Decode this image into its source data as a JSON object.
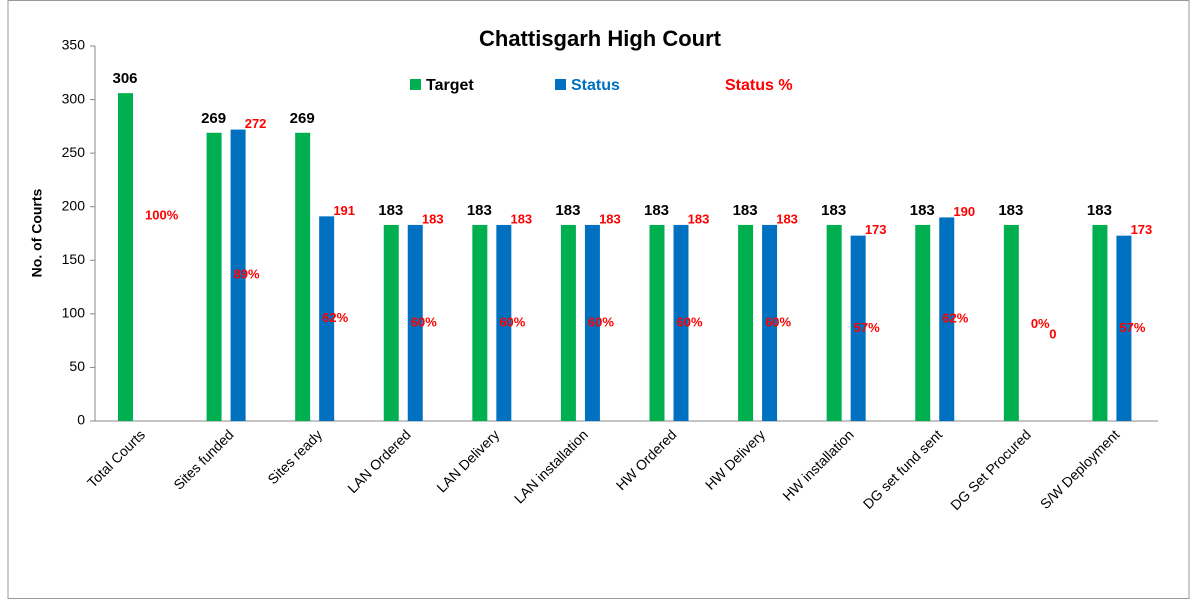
{
  "chart_data": {
    "type": "bar",
    "title": "Chattisgarh High Court",
    "y_label": "No. of Courts",
    "categories": [
      "Total Courts",
      "Sites funded",
      "Sites ready",
      "LAN Ordered",
      "LAN Delivery",
      "LAN installation",
      "HW Ordered",
      "HW Delivery",
      "HW installation",
      "DG set fund sent",
      "DG Set Procured",
      "S/W Deployment"
    ],
    "series": [
      {
        "name": "Target",
        "color": "#00b050",
        "values": [
          306,
          269,
          269,
          183,
          183,
          183,
          183,
          183,
          183,
          183,
          183,
          183
        ]
      },
      {
        "name": "Status",
        "color": "#0070c0",
        "values": [
          null,
          272,
          191,
          183,
          183,
          183,
          183,
          183,
          173,
          190,
          0,
          173
        ]
      },
      {
        "name": "Status %",
        "color": "#ff0000",
        "values": [
          100,
          89,
          62,
          60,
          60,
          60,
          60,
          60,
          57,
          62,
          0,
          57
        ],
        "value_labels": [
          "100%",
          "89%",
          "62%",
          "60%",
          "60%",
          "60%",
          "60%",
          "60%",
          "57%",
          "62%",
          "0%",
          "57%"
        ]
      }
    ],
    "ylim": [
      0,
      350
    ],
    "yticks": [
      0,
      50,
      100,
      150,
      200,
      250,
      300,
      350
    ]
  }
}
